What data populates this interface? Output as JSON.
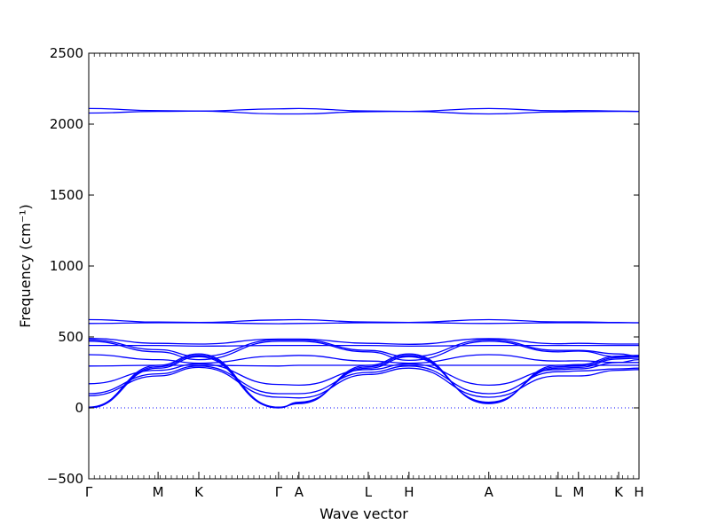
{
  "chart_data": {
    "type": "line",
    "title": "",
    "xlabel": "Wave vector",
    "ylabel": "Frequency (cm⁻¹)",
    "ylim": [
      -500,
      2500
    ],
    "yticks": [
      -500,
      0,
      500,
      1000,
      1500,
      2000,
      2500
    ],
    "xlim": [
      0,
      10
    ],
    "xticks": [
      {
        "label": "Γ",
        "x": 0
      },
      {
        "label": "M",
        "x": 1.26
      },
      {
        "label": "K",
        "x": 2.0
      },
      {
        "label": "Γ",
        "x": 3.45
      },
      {
        "label": "A",
        "x": 3.82
      },
      {
        "label": "L",
        "x": 5.08
      },
      {
        "label": "H",
        "x": 5.82
      },
      {
        "label": "A",
        "x": 7.27
      },
      {
        "label": "L",
        "x": 8.53
      },
      {
        "label": "M",
        "x": 8.9
      },
      {
        "label": "K",
        "x": 9.63
      },
      {
        "label": "H",
        "x": 10.0
      }
    ],
    "grid": false,
    "zero_line": true,
    "series_color": "#0000ff",
    "bands": [
      [
        [
          0,
          2110
        ],
        [
          1.26,
          2095
        ],
        [
          2.0,
          2092
        ],
        [
          3.45,
          2108
        ],
        [
          3.82,
          2110
        ],
        [
          5.08,
          2093
        ],
        [
          5.82,
          2090
        ],
        [
          7.27,
          2110
        ],
        [
          8.53,
          2094
        ],
        [
          8.9,
          2096
        ],
        [
          9.63,
          2092
        ],
        [
          10,
          2090
        ]
      ],
      [
        [
          0,
          2078
        ],
        [
          1.26,
          2090
        ],
        [
          2.0,
          2092
        ],
        [
          3.45,
          2072
        ],
        [
          3.82,
          2072
        ],
        [
          5.08,
          2088
        ],
        [
          5.82,
          2090
        ],
        [
          7.27,
          2072
        ],
        [
          8.53,
          2086
        ],
        [
          8.9,
          2088
        ],
        [
          9.63,
          2090
        ],
        [
          10,
          2090
        ]
      ],
      [
        [
          0,
          622
        ],
        [
          1.26,
          605
        ],
        [
          2.0,
          602
        ],
        [
          3.45,
          620
        ],
        [
          3.82,
          622
        ],
        [
          5.08,
          605
        ],
        [
          5.82,
          602
        ],
        [
          7.27,
          622
        ],
        [
          8.53,
          606
        ],
        [
          8.9,
          606
        ],
        [
          9.63,
          602
        ],
        [
          10,
          600
        ]
      ],
      [
        [
          0,
          595
        ],
        [
          1.26,
          600
        ],
        [
          2.0,
          600
        ],
        [
          3.45,
          593
        ],
        [
          3.82,
          595
        ],
        [
          5.08,
          600
        ],
        [
          5.82,
          601
        ],
        [
          7.27,
          595
        ],
        [
          8.53,
          600
        ],
        [
          8.9,
          600
        ],
        [
          9.63,
          600
        ],
        [
          10,
          600
        ]
      ],
      [
        [
          0,
          490
        ],
        [
          1.26,
          455
        ],
        [
          2.0,
          450
        ],
        [
          3.45,
          485
        ],
        [
          3.82,
          485
        ],
        [
          5.08,
          455
        ],
        [
          5.82,
          448
        ],
        [
          7.27,
          488
        ],
        [
          8.53,
          452
        ],
        [
          8.9,
          455
        ],
        [
          9.63,
          450
        ],
        [
          10,
          450
        ]
      ],
      [
        [
          0,
          480
        ],
        [
          1.26,
          410
        ],
        [
          2.0,
          362
        ],
        [
          3.45,
          480
        ],
        [
          3.82,
          480
        ],
        [
          5.08,
          405
        ],
        [
          5.82,
          360
        ],
        [
          7.27,
          480
        ],
        [
          8.53,
          405
        ],
        [
          8.9,
          405
        ],
        [
          9.63,
          380
        ],
        [
          10,
          365
        ]
      ],
      [
        [
          0,
          470
        ],
        [
          1.26,
          395
        ],
        [
          2.0,
          340
        ],
        [
          3.45,
          470
        ],
        [
          3.82,
          470
        ],
        [
          5.08,
          395
        ],
        [
          5.82,
          335
        ],
        [
          7.27,
          470
        ],
        [
          8.53,
          395
        ],
        [
          8.9,
          400
        ],
        [
          9.63,
          360
        ],
        [
          10,
          360
        ]
      ],
      [
        [
          0,
          440
        ],
        [
          1.26,
          440
        ],
        [
          2.0,
          435
        ],
        [
          3.45,
          440
        ],
        [
          3.82,
          440
        ],
        [
          5.08,
          440
        ],
        [
          5.82,
          435
        ],
        [
          7.27,
          440
        ],
        [
          8.53,
          440
        ],
        [
          8.9,
          440
        ],
        [
          9.63,
          440
        ],
        [
          10,
          440
        ]
      ],
      [
        [
          0,
          375
        ],
        [
          1.26,
          340
        ],
        [
          2.0,
          315
        ],
        [
          3.45,
          365
        ],
        [
          3.82,
          370
        ],
        [
          5.08,
          330
        ],
        [
          5.82,
          315
        ],
        [
          7.27,
          375
        ],
        [
          8.53,
          330
        ],
        [
          8.9,
          332
        ],
        [
          9.63,
          320
        ],
        [
          10,
          320
        ]
      ],
      [
        [
          0,
          295
        ],
        [
          1.26,
          300
        ],
        [
          2.0,
          300
        ],
        [
          3.45,
          295
        ],
        [
          3.82,
          300
        ],
        [
          5.08,
          300
        ],
        [
          5.82,
          300
        ],
        [
          7.27,
          300
        ],
        [
          8.53,
          300
        ],
        [
          8.9,
          300
        ],
        [
          9.63,
          300
        ],
        [
          10,
          300
        ]
      ],
      [
        [
          0,
          170
        ],
        [
          1.26,
          265
        ],
        [
          2.0,
          310
        ],
        [
          3.45,
          165
        ],
        [
          3.82,
          160
        ],
        [
          5.08,
          270
        ],
        [
          5.82,
          310
        ],
        [
          7.27,
          160
        ],
        [
          8.53,
          270
        ],
        [
          8.9,
          275
        ],
        [
          9.63,
          320
        ],
        [
          10,
          340
        ]
      ],
      [
        [
          0,
          100
        ],
        [
          1.26,
          240
        ],
        [
          2.0,
          295
        ],
        [
          3.45,
          100
        ],
        [
          3.82,
          100
        ],
        [
          5.08,
          250
        ],
        [
          5.82,
          295
        ],
        [
          7.27,
          100
        ],
        [
          8.53,
          255
        ],
        [
          8.9,
          260
        ],
        [
          9.63,
          275
        ],
        [
          10,
          280
        ]
      ],
      [
        [
          0,
          85
        ],
        [
          1.26,
          225
        ],
        [
          2.0,
          285
        ],
        [
          3.45,
          75
        ],
        [
          3.82,
          70
        ],
        [
          5.08,
          235
        ],
        [
          5.82,
          280
        ],
        [
          7.27,
          75
        ],
        [
          8.53,
          225
        ],
        [
          8.9,
          225
        ],
        [
          9.63,
          265
        ],
        [
          10,
          270
        ]
      ],
      [
        [
          0,
          0
        ],
        [
          1.26,
          280
        ],
        [
          2.0,
          360
        ],
        [
          3.45,
          0
        ],
        [
          3.82,
          40
        ],
        [
          5.08,
          280
        ],
        [
          5.82,
          360
        ],
        [
          7.27,
          40
        ],
        [
          8.53,
          280
        ],
        [
          8.9,
          285
        ],
        [
          9.63,
          345
        ],
        [
          10,
          350
        ]
      ],
      [
        [
          0,
          0
        ],
        [
          1.26,
          290
        ],
        [
          2.0,
          370
        ],
        [
          3.45,
          0
        ],
        [
          3.82,
          35
        ],
        [
          5.08,
          290
        ],
        [
          5.82,
          370
        ],
        [
          7.27,
          35
        ],
        [
          8.53,
          290
        ],
        [
          8.9,
          295
        ],
        [
          9.63,
          355
        ],
        [
          10,
          360
        ]
      ],
      [
        [
          0,
          5
        ],
        [
          1.26,
          300
        ],
        [
          2.0,
          380
        ],
        [
          3.45,
          5
        ],
        [
          3.82,
          30
        ],
        [
          5.08,
          300
        ],
        [
          5.82,
          380
        ],
        [
          7.27,
          30
        ],
        [
          8.53,
          300
        ],
        [
          8.9,
          305
        ],
        [
          9.63,
          365
        ],
        [
          10,
          370
        ]
      ]
    ]
  }
}
